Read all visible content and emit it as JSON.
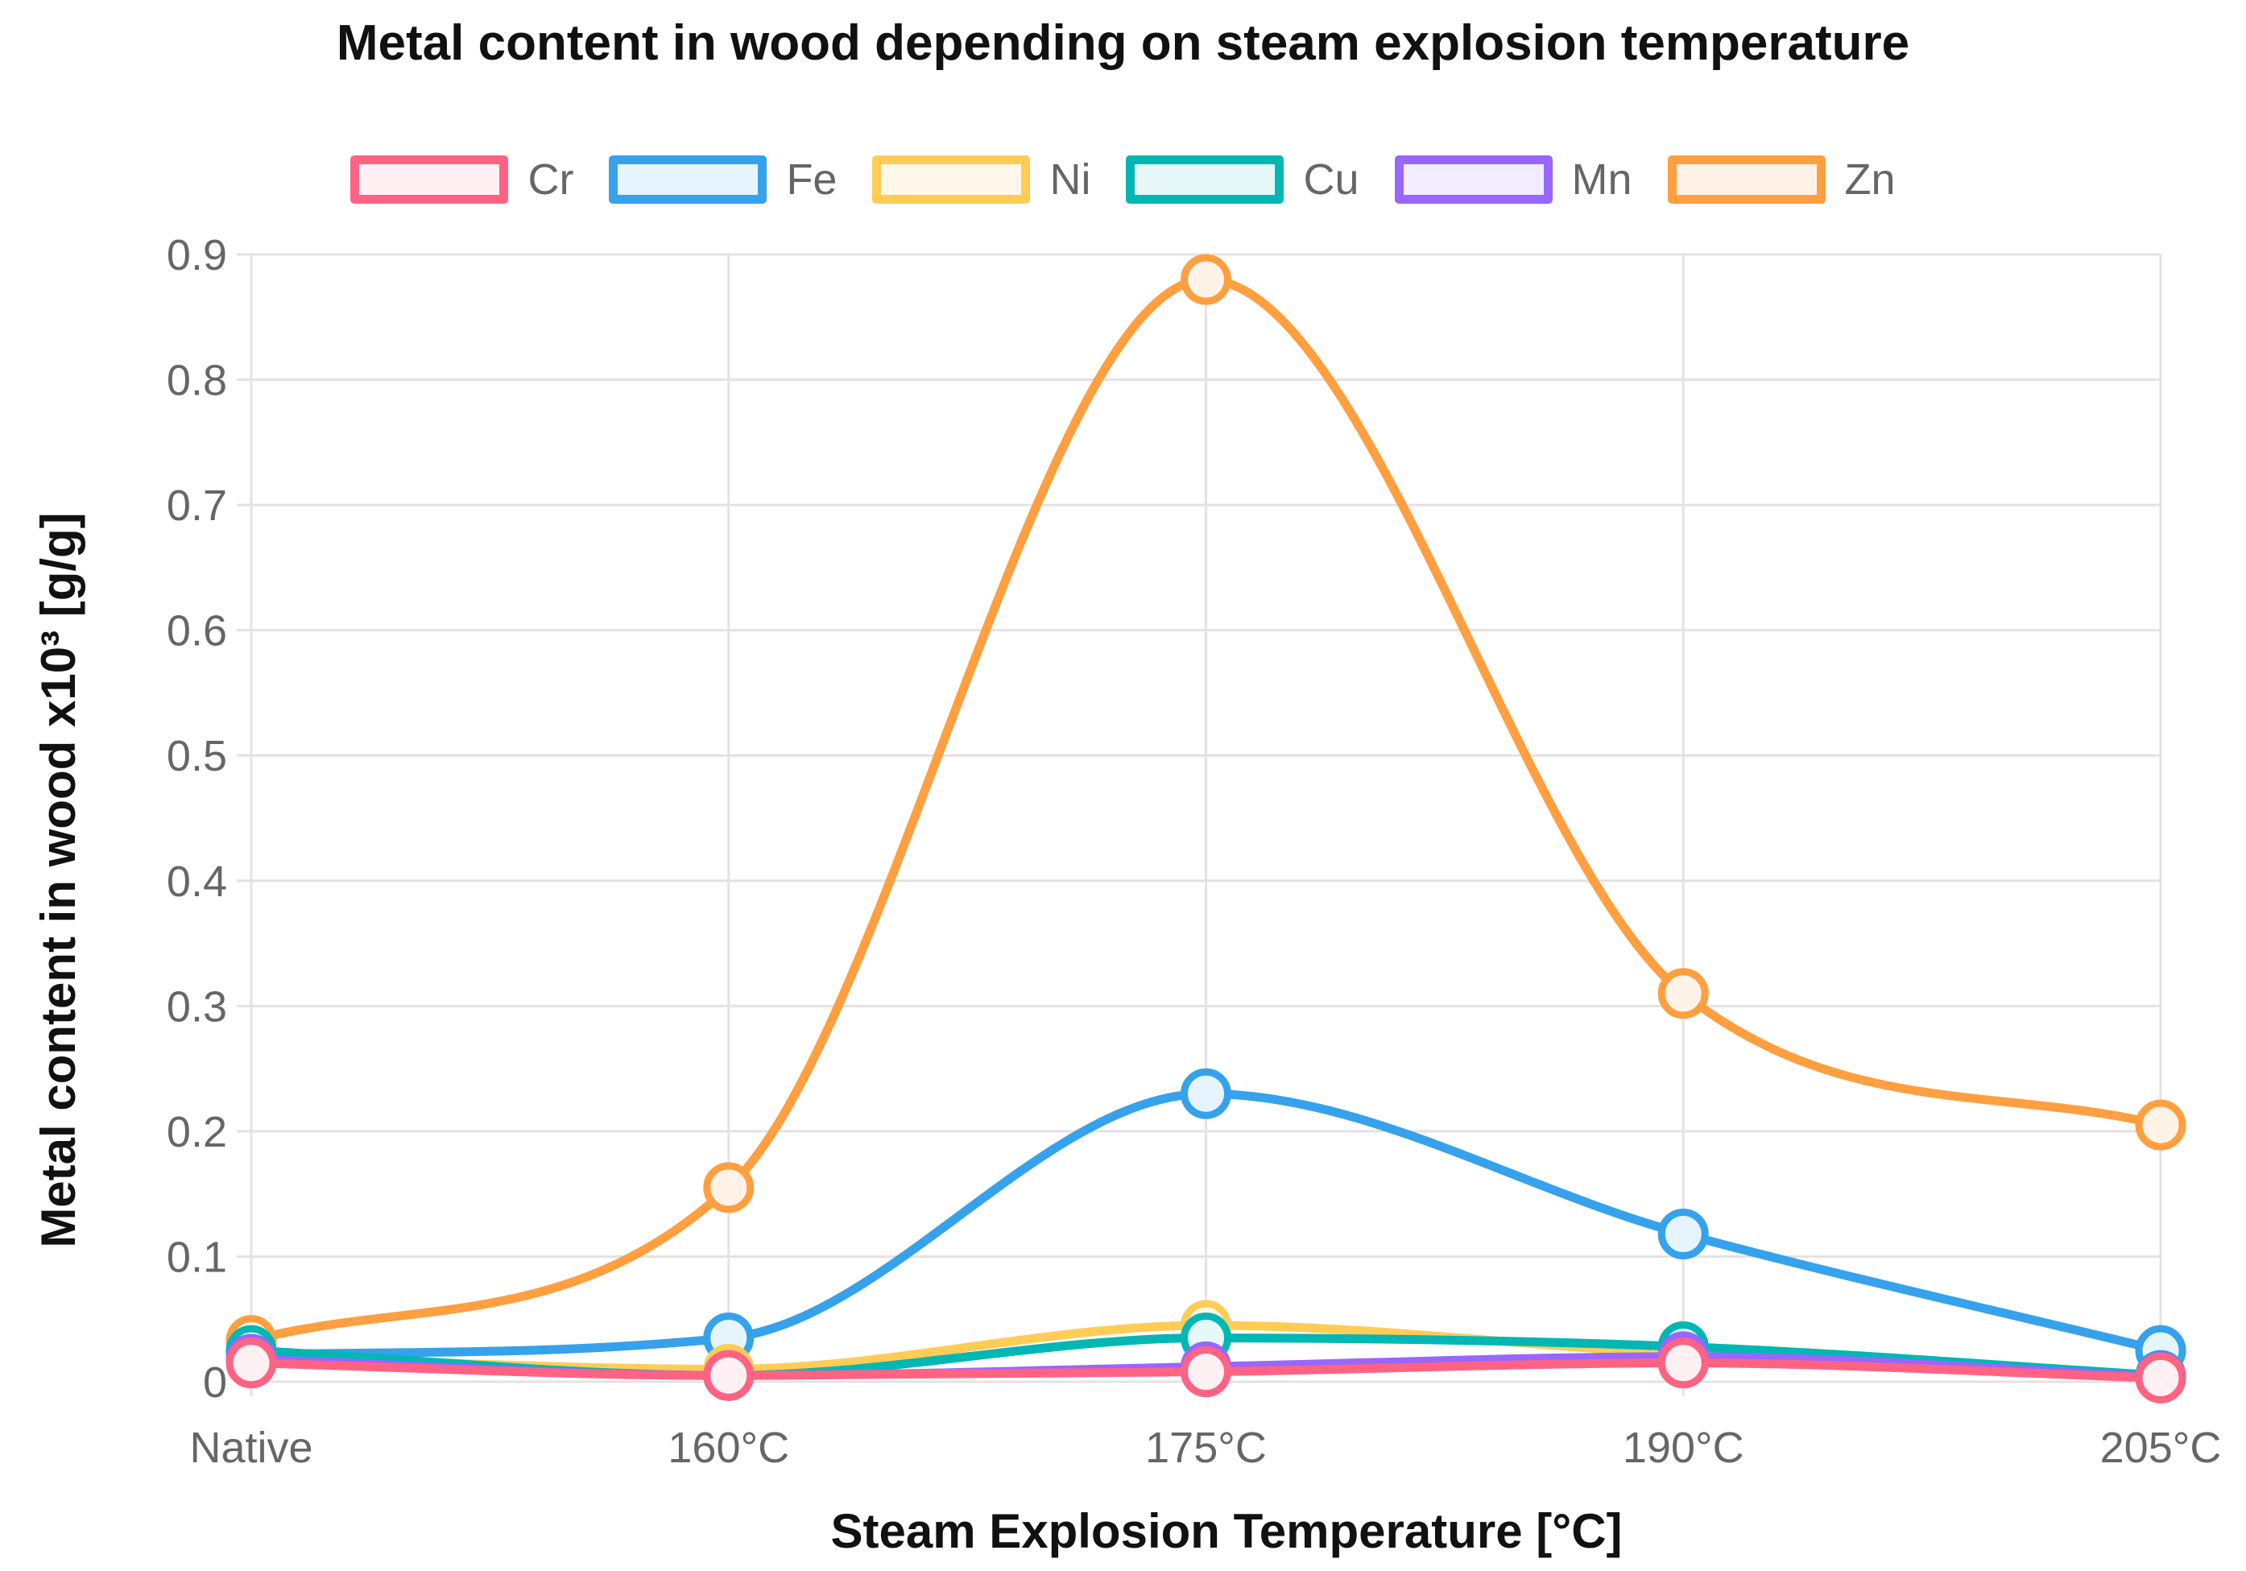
{
  "chart_data": {
    "type": "line",
    "title": "Metal content in wood depending on steam explosion temperature",
    "xlabel": "Steam Explosion Temperature [°C]",
    "ylabel": "Metal content in wood x10³ [g/g]",
    "categories": [
      "Native",
      "160°C",
      "175°C",
      "190°C",
      "205°C"
    ],
    "ylim": [
      0,
      0.9
    ],
    "yticks": [
      "0",
      "0.1",
      "0.2",
      "0.3",
      "0.4",
      "0.5",
      "0.6",
      "0.7",
      "0.8",
      "0.9"
    ],
    "grid": true,
    "legend_position": "top",
    "series": [
      {
        "name": "Cr",
        "color": "#ff6384",
        "fill": "#fff0f3",
        "values": [
          0.015,
          0.005,
          0.008,
          0.015,
          0.003
        ]
      },
      {
        "name": "Fe",
        "color": "#36a2eb",
        "fill": "#e6f4fd",
        "values": [
          0.022,
          0.035,
          0.23,
          0.118,
          0.025
        ]
      },
      {
        "name": "Ni",
        "color": "#ffcd56",
        "fill": "#fff8ea",
        "values": [
          0.02,
          0.01,
          0.045,
          0.022,
          0.005
        ]
      },
      {
        "name": "Cu",
        "color": "#00b7b4",
        "fill": "#e6f8f7",
        "values": [
          0.025,
          0.005,
          0.035,
          0.028,
          0.005
        ]
      },
      {
        "name": "Mn",
        "color": "#9966ff",
        "fill": "#f2ecff",
        "values": [
          0.018,
          0.005,
          0.012,
          0.02,
          0.004
        ]
      },
      {
        "name": "Zn",
        "color": "#ff9f40",
        "fill": "#fff3e8",
        "values": [
          0.033,
          0.155,
          0.88,
          0.31,
          0.205
        ]
      }
    ]
  }
}
